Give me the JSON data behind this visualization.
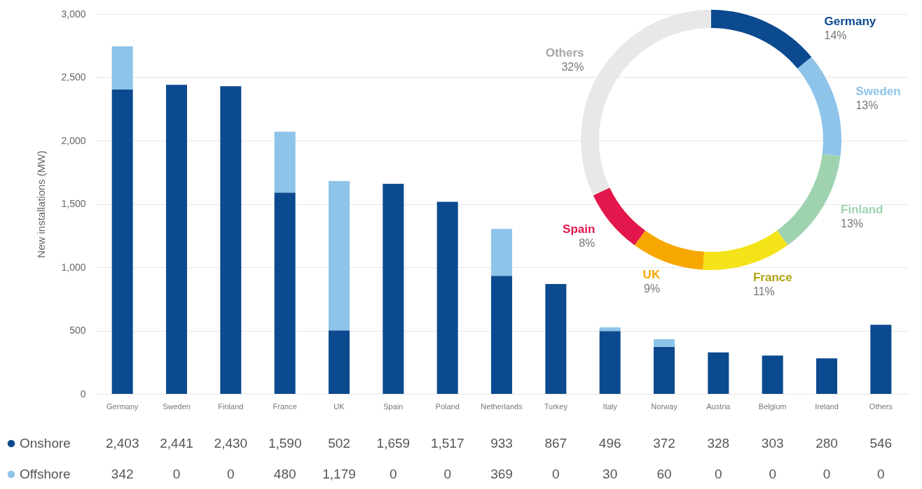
{
  "chart_data": [
    {
      "type": "bar",
      "ylabel": "New installations (MW)",
      "stacked": true,
      "categories": [
        "Germany",
        "Sweden",
        "Finland",
        "France",
        "UK",
        "Spain",
        "Poland",
        "Netherlands",
        "Turkey",
        "Italy",
        "Norway",
        "Austria",
        "Belgium",
        "Ireland",
        "Others"
      ],
      "series": [
        {
          "name": "Onshore",
          "color": "#0b4a8e",
          "values": [
            2403,
            2441,
            2430,
            1590,
            502,
            1659,
            1517,
            933,
            867,
            496,
            372,
            328,
            303,
            280,
            546
          ],
          "value_labels": [
            "2,403",
            "2,441",
            "2,430",
            "1,590",
            "502",
            "1,659",
            "1,517",
            "933",
            "867",
            "496",
            "372",
            "328",
            "303",
            "280",
            "546"
          ]
        },
        {
          "name": "Offshore",
          "color": "#8ec3ea",
          "values": [
            342,
            0,
            0,
            480,
            1179,
            0,
            0,
            369,
            0,
            30,
            60,
            0,
            0,
            0,
            0
          ],
          "value_labels": [
            "342",
            "0",
            "0",
            "480",
            "1,179",
            "0",
            "0",
            "369",
            "0",
            "30",
            "60",
            "0",
            "0",
            "0",
            "0"
          ]
        }
      ],
      "ylim": [
        0,
        3000
      ],
      "yticks": [
        0,
        {
          "value": 500,
          "label": "500"
        },
        {
          "value": 1000,
          "label": "1,000"
        },
        {
          "value": 1500,
          "label": "1,500"
        },
        {
          "value": 2000,
          "label": "2,000"
        },
        {
          "value": 2500,
          "label": "2,500"
        },
        {
          "value": 3000,
          "label": "3,000"
        }
      ],
      "grid": "y",
      "legend": "bottom"
    },
    {
      "type": "donut",
      "categories": [
        "Germany",
        "Sweden",
        "Finland",
        "France",
        "UK",
        "Spain",
        "Others"
      ],
      "values": [
        14,
        13,
        13,
        11,
        9,
        8,
        32
      ],
      "value_labels": [
        "14%",
        "13%",
        "13%",
        "11%",
        "9%",
        "8%",
        "32%"
      ],
      "colors": [
        "#0b4a8e",
        "#8ec3ea",
        "#9fd3b0",
        "#f5e31a",
        "#f7a800",
        "#e3174c",
        "#e8e8e8"
      ]
    }
  ]
}
